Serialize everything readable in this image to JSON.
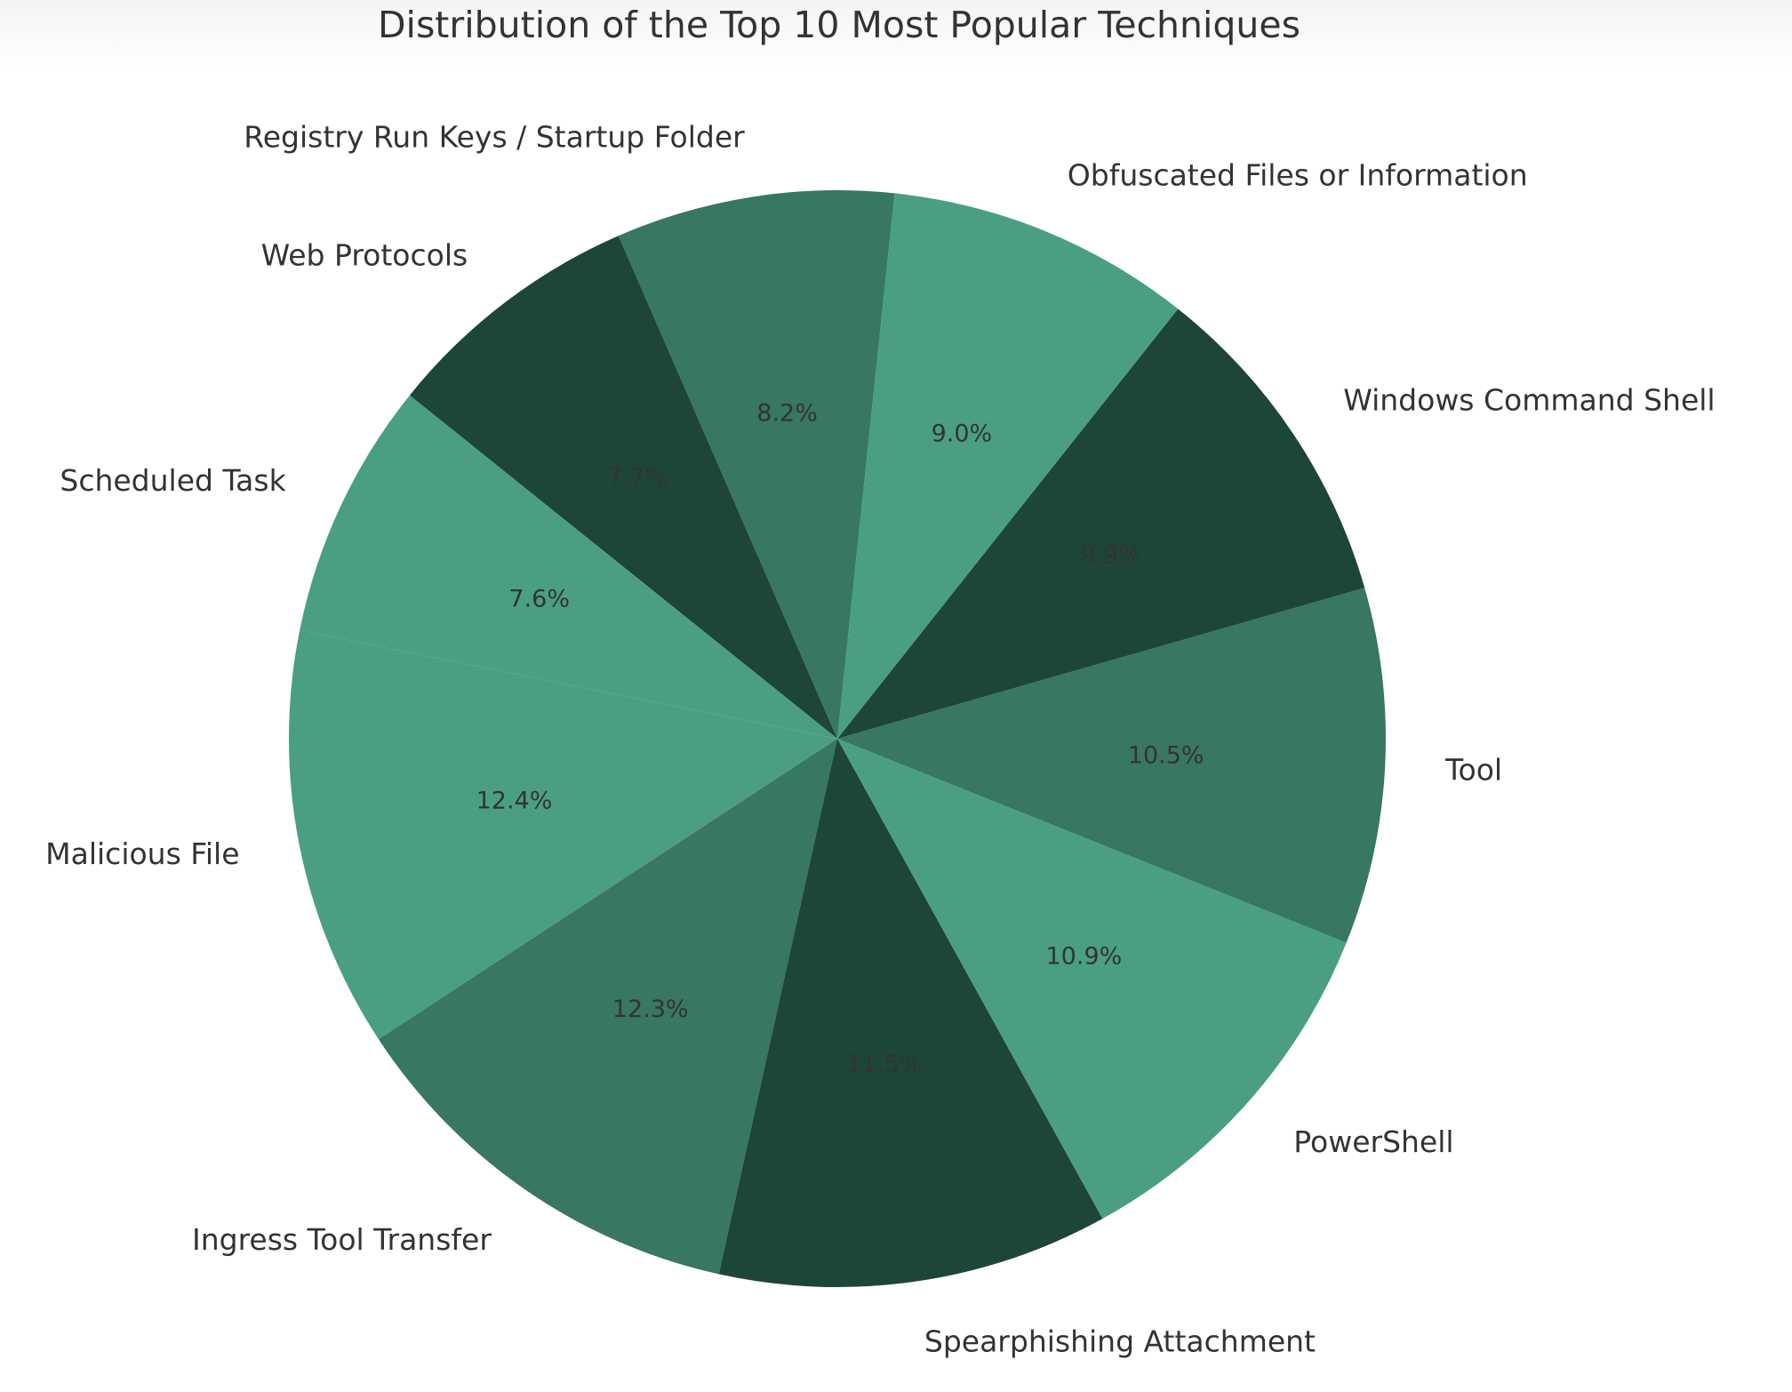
{
  "chart_data": {
    "type": "pie",
    "title": "Distribution of the Top 10 Most Popular Techniques",
    "slices": [
      {
        "label": "Registry Run Keys / Startup Folder",
        "percent_label": "8.2%",
        "value": 8.2,
        "color": "#387762"
      },
      {
        "label": "Web Protocols",
        "percent_label": "7.7%",
        "value": 7.7,
        "color": "#1d4639"
      },
      {
        "label": "Scheduled Task",
        "percent_label": "7.6%",
        "value": 7.6,
        "color": "#4a9f80"
      },
      {
        "label": "Malicious File",
        "percent_label": "12.4%",
        "value": 12.4,
        "color": "#4a9f80"
      },
      {
        "label": "Ingress Tool Transfer",
        "percent_label": "12.3%",
        "value": 12.3,
        "color": "#387762"
      },
      {
        "label": "Spearphishing Attachment",
        "percent_label": "11.5%",
        "value": 11.5,
        "color": "#1d4639"
      },
      {
        "label": "PowerShell",
        "percent_label": "10.9%",
        "value": 10.9,
        "color": "#4a9f80"
      },
      {
        "label": "Tool",
        "percent_label": "10.5%",
        "value": 10.5,
        "color": "#387762"
      },
      {
        "label": "Windows Command Shell",
        "percent_label": "9.9%",
        "value": 9.9,
        "color": "#1d4639"
      },
      {
        "label": "Obfuscated Files or Information",
        "percent_label": "9.0%",
        "value": 9.0,
        "color": "#4a9f80"
      }
    ],
    "text_color": "#333333",
    "label_placement": "outside",
    "percent_placement": "inside"
  }
}
